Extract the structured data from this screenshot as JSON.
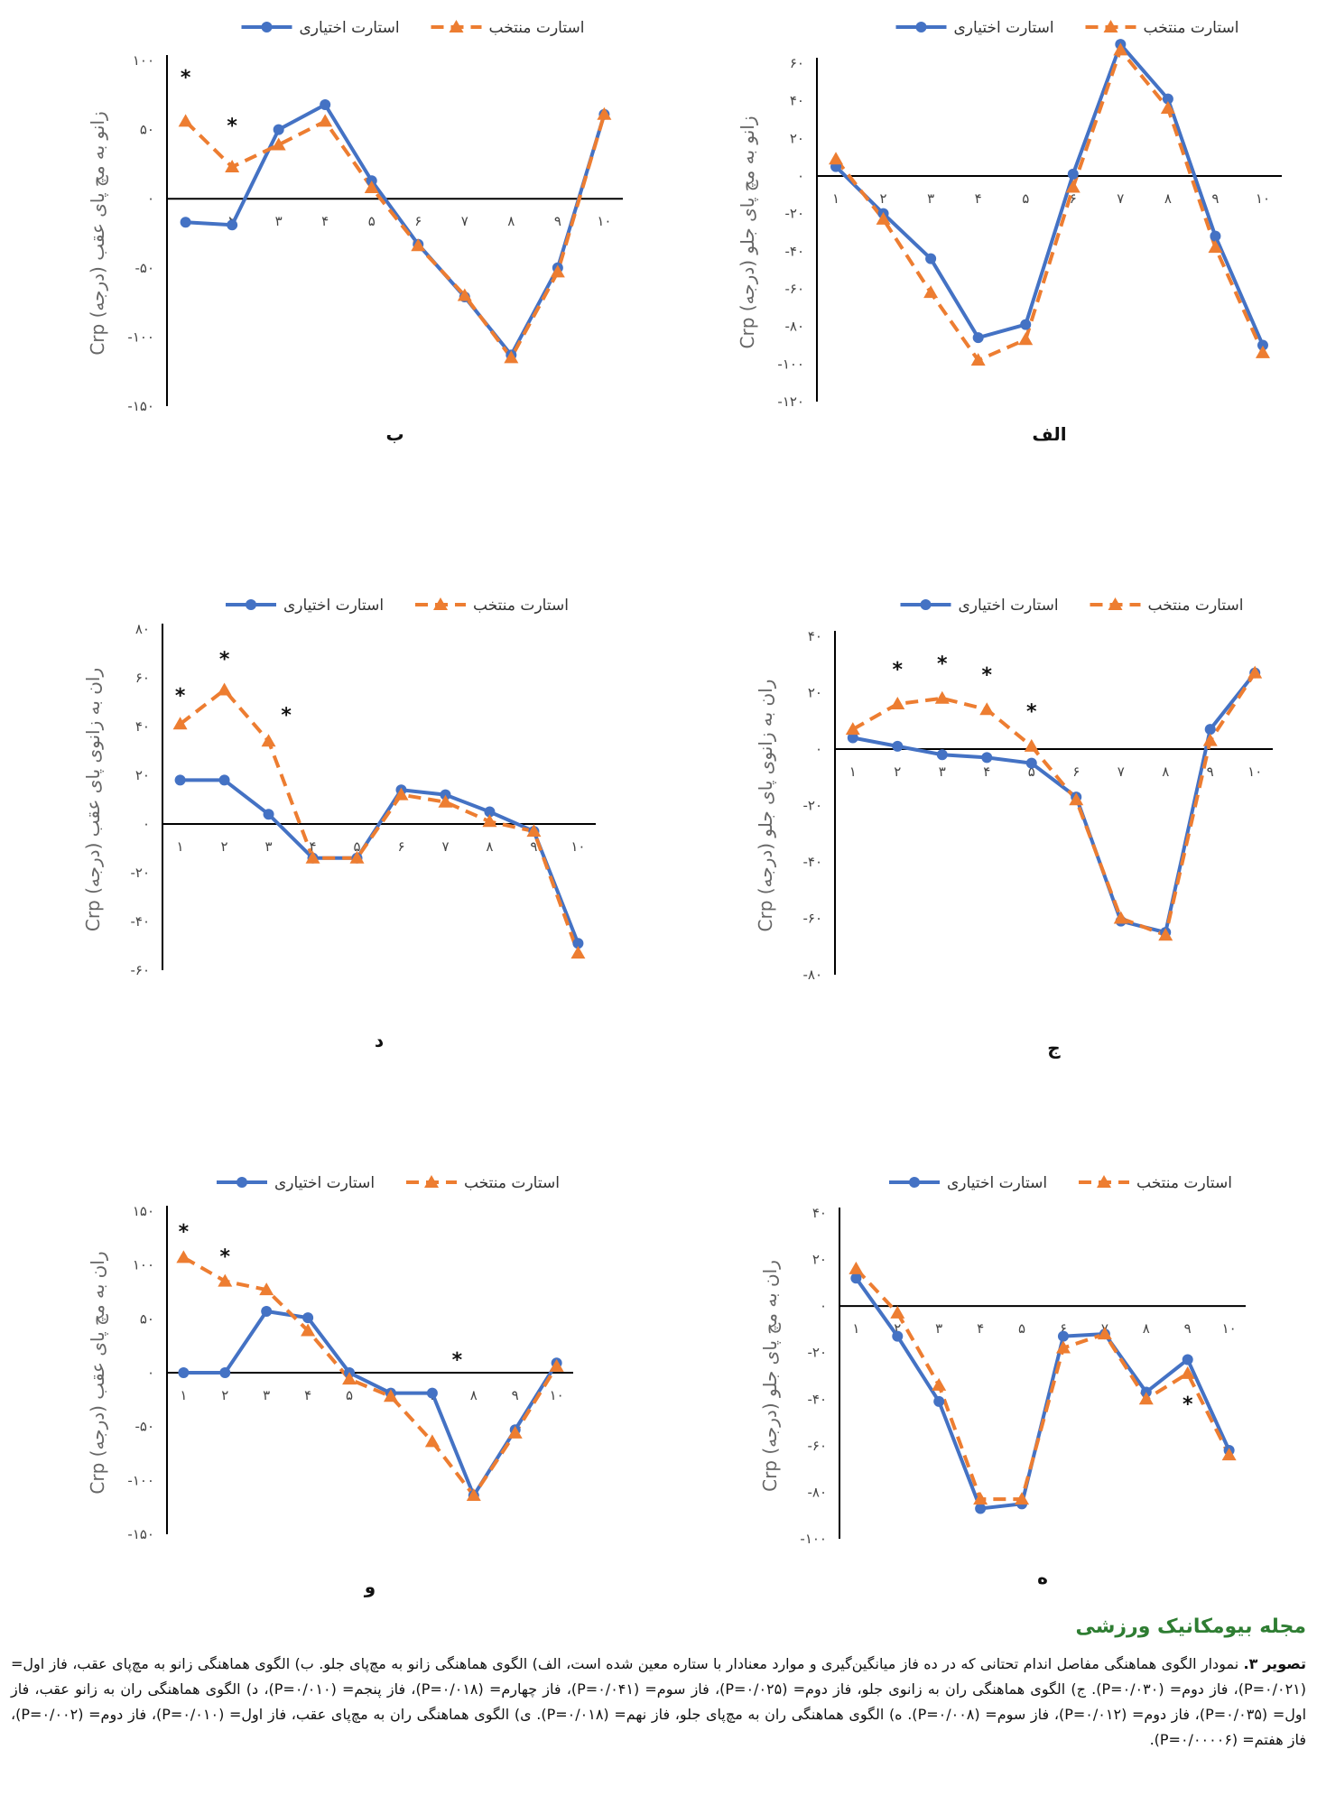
{
  "colors": {
    "voluntary": "#4472c4",
    "selected": "#ed7d31",
    "axis": "#000000"
  },
  "legend": {
    "voluntary": "استارت اختیاری",
    "selected": "استارت منتخب"
  },
  "chart_data": [
    {
      "id": "alef",
      "type": "line",
      "letter": "الف",
      "ylabel": "Crp زانو به مچ پای جلو (درجه)",
      "x": [
        1,
        2,
        3,
        4,
        5,
        6,
        7,
        8,
        9,
        10
      ],
      "x_ticks": [
        "۱",
        "۲",
        "۳",
        "۴",
        "۵",
        "۶",
        "۷",
        "۸",
        "۹",
        "۱۰"
      ],
      "y_ticks": [
        {
          "v": 60,
          "t": "۶۰"
        },
        {
          "v": 40,
          "t": "۴۰"
        },
        {
          "v": 20,
          "t": "۲۰"
        },
        {
          "v": 0,
          "t": "۰"
        },
        {
          "v": -20,
          "t": "-۲۰"
        },
        {
          "v": -40,
          "t": "-۴۰"
        },
        {
          "v": -60,
          "t": "-۶۰"
        },
        {
          "v": -80,
          "t": "-۸۰"
        },
        {
          "v": -100,
          "t": "-۱۰۰"
        },
        {
          "v": -120,
          "t": "-۱۲۰"
        }
      ],
      "ylim": [
        -120,
        60
      ],
      "series": [
        {
          "name": "استارت اختیاری",
          "values": [
            5,
            -20,
            -44,
            -86,
            -79,
            1,
            70,
            41,
            -32,
            -90
          ]
        },
        {
          "name": "استارت منتخب",
          "values": [
            9,
            -23,
            -62,
            -98,
            -87,
            -6,
            67,
            36,
            -38,
            -94
          ]
        }
      ],
      "stars": []
    },
    {
      "id": "be",
      "type": "line",
      "letter": "ب",
      "ylabel": "Crp زانو به مچ پای عقب (درجه)",
      "x": [
        1,
        2,
        3,
        4,
        5,
        6,
        7,
        8,
        9,
        10
      ],
      "x_ticks": [
        "۱",
        "۲",
        "۳",
        "۴",
        "۵",
        "۶",
        "۷",
        "۸",
        "۹",
        "۱۰"
      ],
      "y_ticks": [
        {
          "v": 100,
          "t": "۱۰۰"
        },
        {
          "v": 50,
          "t": "۵۰"
        },
        {
          "v": 0,
          "t": "۰"
        },
        {
          "v": -50,
          "t": "-۵۰"
        },
        {
          "v": -100,
          "t": "-۱۰۰"
        },
        {
          "v": -150,
          "t": "-۱۵۰"
        }
      ],
      "ylim": [
        -150,
        100
      ],
      "series": [
        {
          "name": "استارت اختیاری",
          "values": [
            -17,
            -19,
            50,
            68,
            13,
            -33,
            -71,
            -113,
            -50,
            61
          ]
        },
        {
          "name": "استارت منتخب",
          "values": [
            56,
            23,
            39,
            56,
            8,
            -34,
            -70,
            -115,
            -53,
            61
          ]
        }
      ],
      "stars": [
        {
          "x": 1,
          "y": 83,
          "t": "*"
        },
        {
          "x": 2,
          "y": 48,
          "t": "*"
        }
      ]
    },
    {
      "id": "jim",
      "type": "line",
      "letter": "ج",
      "ylabel": "Crp ران به زانوی پای جلو (درجه)",
      "x": [
        1,
        2,
        3,
        4,
        5,
        6,
        7,
        8,
        9,
        10
      ],
      "x_ticks": [
        "۱",
        "۲",
        "۳",
        "۴",
        "۵",
        "۶",
        "۷",
        "۸",
        "۹",
        "۱۰"
      ],
      "y_ticks": [
        {
          "v": 40,
          "t": "۴۰"
        },
        {
          "v": 20,
          "t": "۲۰"
        },
        {
          "v": 0,
          "t": "۰"
        },
        {
          "v": -20,
          "t": "-۲۰"
        },
        {
          "v": -40,
          "t": "-۴۰"
        },
        {
          "v": -60,
          "t": "-۶۰"
        },
        {
          "v": -80,
          "t": "-۸۰"
        }
      ],
      "ylim": [
        -80,
        40
      ],
      "series": [
        {
          "name": "استارت اختیاری",
          "values": [
            4,
            1,
            -2,
            -3,
            -5,
            -17,
            -61,
            -65,
            7,
            27
          ]
        },
        {
          "name": "استارت منتخب",
          "values": [
            7,
            16,
            18,
            14,
            1,
            -18,
            -60,
            -66,
            3,
            27
          ]
        }
      ],
      "stars": [
        {
          "x": 2,
          "y": 26,
          "t": "*"
        },
        {
          "x": 3,
          "y": 28,
          "t": "*"
        },
        {
          "x": 4,
          "y": 24,
          "t": "*"
        },
        {
          "x": 5,
          "y": 11,
          "t": "*"
        }
      ]
    },
    {
      "id": "dal",
      "type": "line",
      "letter": "د",
      "ylabel": "Crp ران به زانوی پای عقب (درجه)",
      "x": [
        1,
        2,
        3,
        4,
        5,
        6,
        7,
        8,
        9,
        10
      ],
      "x_ticks": [
        "۱",
        "۲",
        "۳",
        "۴",
        "۵",
        "۶",
        "۷",
        "۸",
        "۹",
        "۱۰"
      ],
      "y_ticks": [
        {
          "v": 80,
          "t": "۸۰"
        },
        {
          "v": 60,
          "t": "۶۰"
        },
        {
          "v": 40,
          "t": "۴۰"
        },
        {
          "v": 20,
          "t": "۲۰"
        },
        {
          "v": 0,
          "t": "۰"
        },
        {
          "v": -20,
          "t": "-۲۰"
        },
        {
          "v": -40,
          "t": "-۴۰"
        },
        {
          "v": -60,
          "t": "-۶۰"
        }
      ],
      "ylim": [
        -60,
        80
      ],
      "series": [
        {
          "name": "استارت اختیاری",
          "values": [
            18,
            18,
            4,
            -14,
            -14,
            14,
            12,
            5,
            -3,
            -49
          ]
        },
        {
          "name": "استارت منتخب",
          "values": [
            41,
            55,
            34,
            -14,
            -14,
            12,
            9,
            1,
            -3,
            -53
          ]
        }
      ],
      "stars": [
        {
          "x": 1,
          "y": 50,
          "t": "*"
        },
        {
          "x": 2,
          "y": 65,
          "t": "*"
        },
        {
          "x": 3.4,
          "y": 42,
          "t": "*"
        }
      ]
    },
    {
      "id": "he",
      "type": "line",
      "letter": "ه",
      "ylabel": "Crp ران به مچ پای جلو (درجه)",
      "x": [
        1,
        2,
        3,
        4,
        5,
        6,
        7,
        8,
        9,
        10
      ],
      "x_ticks": [
        "۱",
        "۲",
        "۳",
        "۴",
        "۵",
        "۶",
        "۷",
        "۸",
        "۹",
        "۱۰"
      ],
      "y_ticks": [
        {
          "v": 40,
          "t": "۴۰"
        },
        {
          "v": 20,
          "t": "۲۰"
        },
        {
          "v": 0,
          "t": "۰"
        },
        {
          "v": -20,
          "t": "-۲۰"
        },
        {
          "v": -40,
          "t": "-۴۰"
        },
        {
          "v": -60,
          "t": "-۶۰"
        },
        {
          "v": -80,
          "t": "-۸۰"
        },
        {
          "v": -100,
          "t": "-۱۰۰"
        }
      ],
      "ylim": [
        -100,
        40
      ],
      "series": [
        {
          "name": "استارت اختیاری",
          "values": [
            12,
            -13,
            -41,
            -87,
            -85,
            -13,
            -12,
            -37,
            -23,
            -62
          ]
        },
        {
          "name": "استارت منتخب",
          "values": [
            16,
            -3,
            -34,
            -83,
            -83,
            -18,
            -12,
            -40,
            -29,
            -64
          ]
        }
      ],
      "stars": [
        {
          "x": 9,
          "y": -45,
          "t": "*"
        }
      ]
    },
    {
      "id": "vav",
      "type": "line",
      "letter": "و",
      "ylabel": "Crp ران به مچ پای عقب (درجه)",
      "x": [
        1,
        2,
        3,
        4,
        5,
        6,
        7,
        8,
        9,
        10
      ],
      "x_ticks": [
        "۱",
        "۲",
        "۳",
        "۴",
        "۵",
        "۶",
        "۷",
        "۸",
        "۹",
        "۱۰"
      ],
      "y_ticks": [
        {
          "v": 150,
          "t": "۱۵۰"
        },
        {
          "v": 100,
          "t": "۱۰۰"
        },
        {
          "v": 50,
          "t": "۵۰"
        },
        {
          "v": 0,
          "t": "۰"
        },
        {
          "v": -50,
          "t": "-۵۰"
        },
        {
          "v": -100,
          "t": "-۱۰۰"
        },
        {
          "v": -150,
          "t": "-۱۵۰"
        }
      ],
      "ylim": [
        -150,
        150
      ],
      "series": [
        {
          "name": "استارت اختیاری",
          "values": [
            0,
            0,
            57,
            51,
            0,
            -19,
            -19,
            -114,
            -53,
            9
          ]
        },
        {
          "name": "استارت منتخب",
          "values": [
            107,
            85,
            77,
            39,
            -6,
            -22,
            -64,
            -114,
            -56,
            6
          ]
        }
      ],
      "stars": [
        {
          "x": 1,
          "y": 125,
          "t": "*"
        },
        {
          "x": 2,
          "y": 102,
          "t": "*"
        },
        {
          "x": 7.6,
          "y": 6,
          "t": "*"
        }
      ]
    }
  ],
  "journal": "مجله بیومکانیک ورزشی",
  "caption": {
    "label": "تصویر ۳.",
    "text": " نمودار الگوی هماهنگی مفاصل اندام تحتانی که در ده فاز میانگین‌گیری و موارد معنادار با ستاره معین شده است، الف) الگوی هماهنگی زانو به مچ‌پای جلو. ب) الگوی هماهنگی زانو به مچ‌پای عقب، فاز اول= (P=۰/۰۲۱)، فاز دوم= (P=۰/۰۳۰). ج) الگوی هماهنگی ران به زانوی جلو، فاز دوم= (P=۰/۰۲۵)، فاز سوم= (P=۰/۰۴۱)، فاز چهارم= (P=۰/۰۱۸)، فاز پنجم= (P=۰/۰۱۰)، د) الگوی هماهنگی ران به زانو عقب، فاز اول= (P=۰/۰۳۵)، فاز دوم= (P=۰/۰۱۲)، فاز سوم= (P=۰/۰۰۸). ه) الگوی هماهنگی ران به مچ‌پای جلو، فاز نهم= (P=۰/۰۱۸). ی) الگوی هماهنگی ران به مچ‌پای عقب، فاز اول= (P=۰/۰۱۰)، فاز دوم= (P=۰/۰۰۲)، فاز هفتم= (P=۰/۰۰۰۰۶)."
  }
}
